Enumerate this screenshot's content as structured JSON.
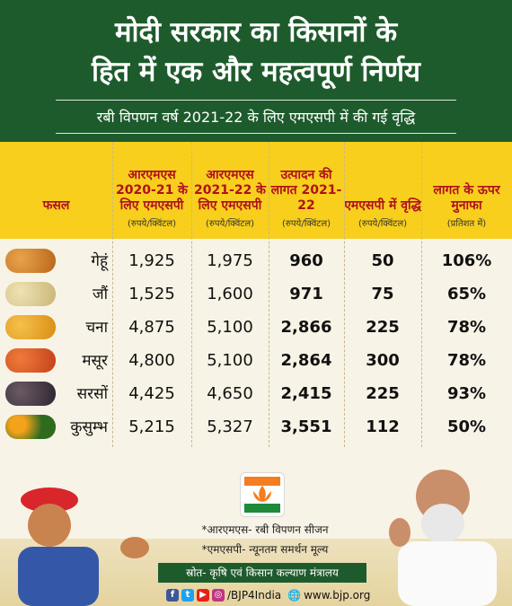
{
  "header": {
    "title_line1": "मोदी सरकार का किसानों के",
    "title_line2": "हित में एक और महत्वपूर्ण निर्णय",
    "subtitle": "रबी विपणन वर्ष 2021-22 के लिए एमएसपी में की गई वृद्धि"
  },
  "table": {
    "headers": [
      {
        "label": "फसल",
        "unit": ""
      },
      {
        "label": "आरएमएस 2020-21 के लिए एमएसपी",
        "unit": "(रुपये/क्विंटल)"
      },
      {
        "label": "आरएमएस 2021-22 के लिए एमएसपी",
        "unit": "(रुपये/क्विंटल)"
      },
      {
        "label": "उत्पादन की लागत 2021-22",
        "unit": "(रुपये/क्विंटल)"
      },
      {
        "label": "एमएसपी में वृद्धि",
        "unit": "(रुपये/क्विंटल)"
      },
      {
        "label": "लागत के ऊपर मुनाफा",
        "unit": "(प्रतिशत में)"
      }
    ],
    "rows": [
      {
        "crop": "गेहूं",
        "msp_2020_21": "1,925",
        "msp_2021_22": "1,975",
        "cost": "960",
        "increase": "50",
        "profit": "106%"
      },
      {
        "crop": "जौं",
        "msp_2020_21": "1,525",
        "msp_2021_22": "1,600",
        "cost": "971",
        "increase": "75",
        "profit": "65%"
      },
      {
        "crop": "चना",
        "msp_2020_21": "4,875",
        "msp_2021_22": "5,100",
        "cost": "2,866",
        "increase": "225",
        "profit": "78%"
      },
      {
        "crop": "मसूर",
        "msp_2020_21": "4,800",
        "msp_2021_22": "5,100",
        "cost": "2,864",
        "increase": "300",
        "profit": "78%"
      },
      {
        "crop": "सरसों",
        "msp_2020_21": "4,425",
        "msp_2021_22": "4,650",
        "cost": "2,415",
        "increase": "225",
        "profit": "93%"
      },
      {
        "crop": "कुसुम्भ",
        "msp_2020_21": "5,215",
        "msp_2021_22": "5,327",
        "cost": "3,551",
        "increase": "112",
        "profit": "50%"
      }
    ]
  },
  "notes": {
    "rms": "*आरएमएस- रबी विपणन सीजन",
    "msp": "*एमएसपी- न्यूनतम समर्थन मूल्य"
  },
  "source": "स्रोत- कृषि एवं किसान कल्याण मंत्रालय",
  "social": {
    "handle": "/BJP4India",
    "website": "www.bjp.org"
  },
  "colors": {
    "header_green": "#1e5b2c",
    "table_header_yellow": "#f8cf1c",
    "header_text_red": "#b0101c"
  }
}
